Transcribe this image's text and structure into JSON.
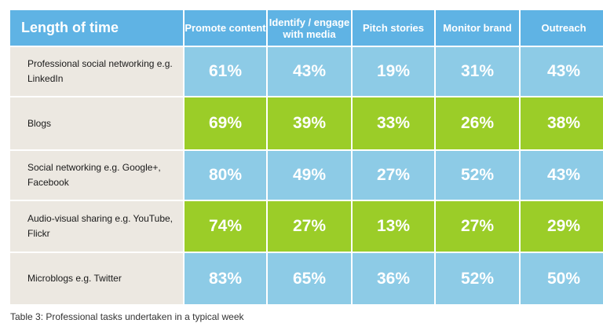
{
  "table": {
    "corner_header": "Length of time",
    "columns": [
      "Promote content",
      "Identify / engage with media",
      "Pitch stories",
      "Monitor brand",
      "Outreach"
    ],
    "rows": [
      {
        "label": "Professional social networking e.g. LinkedIn",
        "values": [
          "61%",
          "43%",
          "19%",
          "31%",
          "43%"
        ],
        "color": "#8dcbe6"
      },
      {
        "label": "Blogs",
        "values": [
          "69%",
          "39%",
          "33%",
          "26%",
          "38%"
        ],
        "color": "#9bcd28"
      },
      {
        "label": "Social networking e.g. Google+, Facebook",
        "values": [
          "80%",
          "49%",
          "27%",
          "52%",
          "43%"
        ],
        "color": "#8dcbe6"
      },
      {
        "label": "Audio-visual sharing e.g. YouTube, Flickr",
        "values": [
          "74%",
          "27%",
          "13%",
          "27%",
          "29%"
        ],
        "color": "#9bcd28"
      },
      {
        "label": "Microblogs e.g. Twitter",
        "values": [
          "83%",
          "65%",
          "36%",
          "52%",
          "50%"
        ],
        "color": "#8dcbe6"
      }
    ]
  },
  "colors": {
    "header": "#5fb3e4",
    "row_label_bg": "#ece8e1",
    "blue_cell": "#8dcbe6",
    "green_cell": "#9bcd28"
  },
  "caption": "Table 3: Professional tasks undertaken in a typical week"
}
